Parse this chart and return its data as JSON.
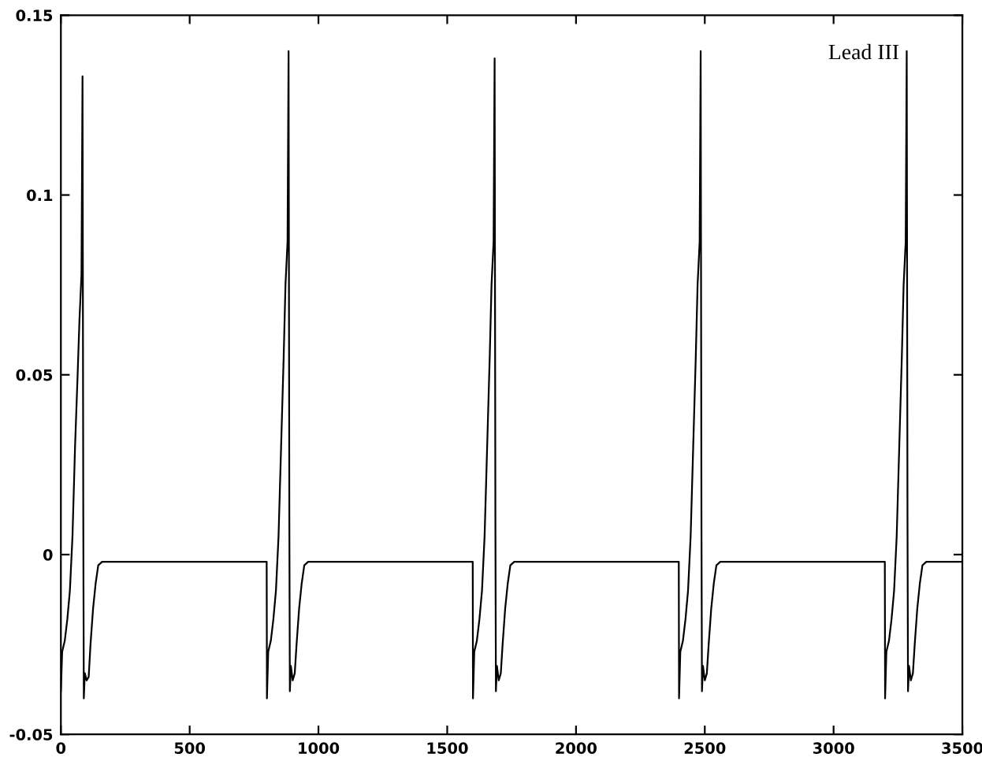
{
  "chart_data": {
    "type": "line",
    "x": [
      0,
      5,
      15,
      25,
      35,
      45,
      55,
      65,
      72,
      80,
      84,
      87,
      89,
      93,
      100,
      108,
      115,
      125,
      135,
      145,
      160,
      799,
      800,
      805,
      815,
      825,
      835,
      845,
      855,
      865,
      872,
      880,
      884,
      887,
      889,
      893,
      900,
      908,
      915,
      925,
      935,
      945,
      960,
      1599,
      1600,
      1605,
      1615,
      1625,
      1635,
      1645,
      1655,
      1665,
      1672,
      1680,
      1684,
      1687,
      1689,
      1693,
      1700,
      1708,
      1715,
      1725,
      1735,
      1745,
      1760,
      2399,
      2400,
      2405,
      2415,
      2425,
      2435,
      2445,
      2455,
      2465,
      2472,
      2480,
      2484,
      2487,
      2489,
      2493,
      2500,
      2508,
      2515,
      2525,
      2535,
      2545,
      2560,
      3199,
      3200,
      3205,
      3215,
      3225,
      3235,
      3245,
      3255,
      3265,
      3272,
      3280,
      3284,
      3287,
      3289,
      3293,
      3300,
      3308,
      3315,
      3325,
      3335,
      3345,
      3360,
      3500
    ],
    "series": [
      {
        "color": "#000000",
        "values": [
          -0.038,
          -0.027,
          -0.024,
          -0.018,
          -0.01,
          0.005,
          0.03,
          0.05,
          0.065,
          0.078,
          0.133,
          0.01,
          -0.04,
          -0.033,
          -0.035,
          -0.034,
          -0.025,
          -0.015,
          -0.008,
          -0.003,
          -0.002,
          -0.002,
          -0.04,
          -0.027,
          -0.024,
          -0.018,
          -0.01,
          0.005,
          0.03,
          0.055,
          0.075,
          0.087,
          0.14,
          0.01,
          -0.038,
          -0.031,
          -0.035,
          -0.033,
          -0.025,
          -0.015,
          -0.008,
          -0.003,
          -0.002,
          -0.002,
          -0.04,
          -0.027,
          -0.024,
          -0.018,
          -0.01,
          0.005,
          0.03,
          0.055,
          0.075,
          0.087,
          0.138,
          0.01,
          -0.038,
          -0.031,
          -0.035,
          -0.033,
          -0.025,
          -0.015,
          -0.008,
          -0.003,
          -0.002,
          -0.002,
          -0.04,
          -0.027,
          -0.024,
          -0.018,
          -0.01,
          0.005,
          0.03,
          0.055,
          0.075,
          0.087,
          0.14,
          0.01,
          -0.038,
          -0.031,
          -0.035,
          -0.033,
          -0.025,
          -0.015,
          -0.008,
          -0.003,
          -0.002,
          -0.002,
          -0.04,
          -0.027,
          -0.024,
          -0.018,
          -0.01,
          0.005,
          0.03,
          0.055,
          0.075,
          0.087,
          0.14,
          0.01,
          -0.038,
          -0.031,
          -0.035,
          -0.033,
          -0.025,
          -0.015,
          -0.008,
          -0.003,
          -0.002,
          -0.002
        ]
      }
    ],
    "xlim": [
      0,
      3500
    ],
    "xticks": [
      0,
      500,
      1000,
      1500,
      2000,
      2500,
      3000,
      3500
    ],
    "ylim": [
      -0.05,
      0.15
    ],
    "yticks": [
      -0.05,
      0,
      0.05,
      0.1,
      0.15
    ],
    "annotations": [
      "Lead III"
    ],
    "grid": false,
    "legend": false
  }
}
